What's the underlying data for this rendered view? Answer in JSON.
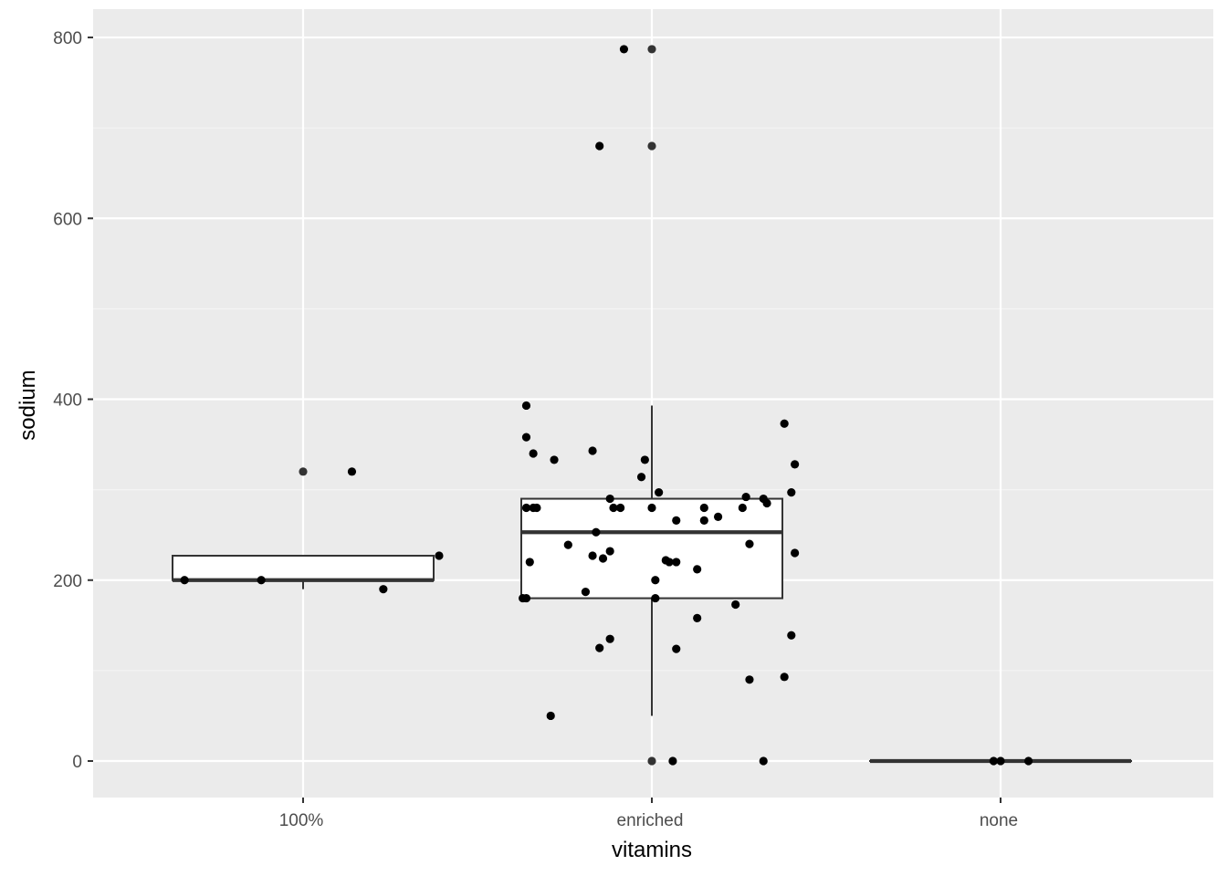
{
  "chart_data": {
    "type": "boxplot",
    "xlabel": "vitamins",
    "ylabel": "sodium",
    "categories": [
      "100%",
      "enriched",
      "none"
    ],
    "ylim": [
      -40,
      830
    ],
    "yticks": [
      0,
      200,
      400,
      600,
      800
    ],
    "grid": true,
    "legend": "none",
    "colors": {
      "panel": "#ebebeb",
      "grid_major": "#ffffff",
      "grid_minor": "#f5f5f5",
      "box_fill": "#ffffff",
      "box_stroke": "#333333",
      "point": "#000000",
      "outlier": "#333333",
      "tick_label": "#4d4d4d"
    },
    "boxes": [
      {
        "category": "100%",
        "whisker_low": 190,
        "q1": 200,
        "median": 200,
        "q3": 227,
        "whisker_high": 227,
        "outliers": [
          320
        ]
      },
      {
        "category": "enriched",
        "whisker_low": 50,
        "q1": 180,
        "median": 253,
        "q3": 290,
        "whisker_high": 393,
        "outliers": [
          0,
          680,
          787
        ]
      },
      {
        "category": "none",
        "whisker_low": 0,
        "q1": 0,
        "median": 0,
        "q3": 0,
        "whisker_high": 0,
        "outliers": []
      }
    ],
    "points": [
      {
        "x": 0.66,
        "y": 200
      },
      {
        "x": 0.88,
        "y": 200
      },
      {
        "x": 1.14,
        "y": 320
      },
      {
        "x": 1.23,
        "y": 190
      },
      {
        "x": 1.39,
        "y": 227
      },
      {
        "x": 1.92,
        "y": 787
      },
      {
        "x": 1.85,
        "y": 680
      },
      {
        "x": 1.64,
        "y": 393
      },
      {
        "x": 1.64,
        "y": 358
      },
      {
        "x": 1.66,
        "y": 340
      },
      {
        "x": 1.72,
        "y": 333
      },
      {
        "x": 1.64,
        "y": 280
      },
      {
        "x": 1.66,
        "y": 280
      },
      {
        "x": 1.67,
        "y": 280
      },
      {
        "x": 1.65,
        "y": 220
      },
      {
        "x": 1.63,
        "y": 180
      },
      {
        "x": 1.64,
        "y": 180
      },
      {
        "x": 1.71,
        "y": 50
      },
      {
        "x": 1.76,
        "y": 239
      },
      {
        "x": 1.81,
        "y": 187
      },
      {
        "x": 1.83,
        "y": 343
      },
      {
        "x": 1.84,
        "y": 253
      },
      {
        "x": 1.83,
        "y": 227
      },
      {
        "x": 1.86,
        "y": 224
      },
      {
        "x": 1.85,
        "y": 125
      },
      {
        "x": 1.88,
        "y": 290
      },
      {
        "x": 1.89,
        "y": 280
      },
      {
        "x": 1.88,
        "y": 232
      },
      {
        "x": 1.88,
        "y": 135
      },
      {
        "x": 1.91,
        "y": 280
      },
      {
        "x": 1.97,
        "y": 314
      },
      {
        "x": 1.98,
        "y": 333
      },
      {
        "x": 2.0,
        "y": 280
      },
      {
        "x": 2.02,
        "y": 297
      },
      {
        "x": 2.01,
        "y": 200
      },
      {
        "x": 2.01,
        "y": 180
      },
      {
        "x": 2.04,
        "y": 222
      },
      {
        "x": 2.05,
        "y": 220
      },
      {
        "x": 2.07,
        "y": 220
      },
      {
        "x": 2.07,
        "y": 266
      },
      {
        "x": 2.07,
        "y": 124
      },
      {
        "x": 2.06,
        "y": 0
      },
      {
        "x": 2.13,
        "y": 212
      },
      {
        "x": 2.13,
        "y": 158
      },
      {
        "x": 2.15,
        "y": 280
      },
      {
        "x": 2.15,
        "y": 266
      },
      {
        "x": 2.19,
        "y": 270
      },
      {
        "x": 2.24,
        "y": 173
      },
      {
        "x": 2.26,
        "y": 280
      },
      {
        "x": 2.27,
        "y": 292
      },
      {
        "x": 2.28,
        "y": 240
      },
      {
        "x": 2.28,
        "y": 90
      },
      {
        "x": 2.32,
        "y": 290
      },
      {
        "x": 2.33,
        "y": 285
      },
      {
        "x": 2.32,
        "y": 0
      },
      {
        "x": 2.38,
        "y": 373
      },
      {
        "x": 2.4,
        "y": 297
      },
      {
        "x": 2.41,
        "y": 328
      },
      {
        "x": 2.41,
        "y": 230
      },
      {
        "x": 2.4,
        "y": 139
      },
      {
        "x": 2.38,
        "y": 93
      },
      {
        "x": 2.98,
        "y": 0
      },
      {
        "x": 3.0,
        "y": 0
      },
      {
        "x": 3.08,
        "y": 0
      }
    ]
  }
}
